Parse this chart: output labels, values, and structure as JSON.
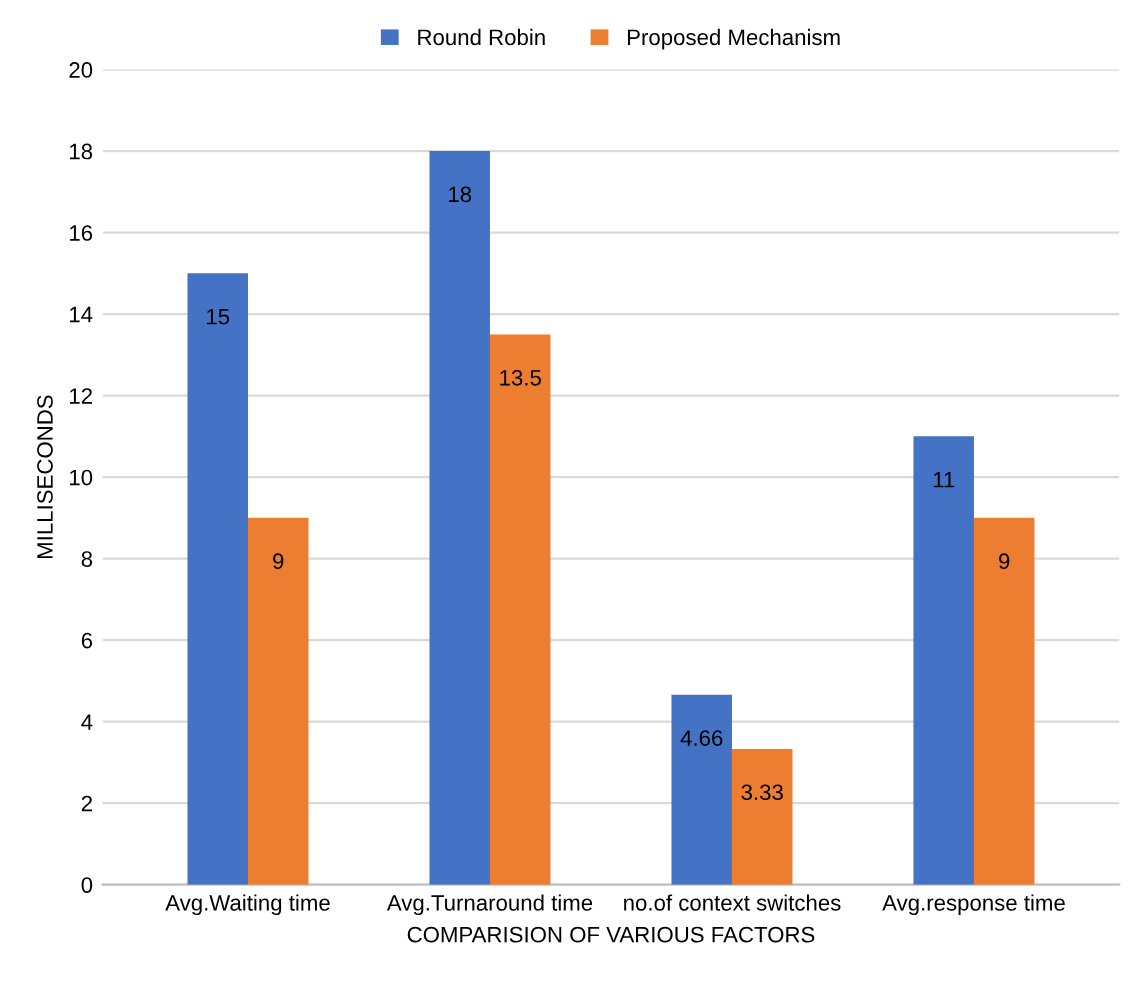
{
  "chart_data": {
    "type": "bar",
    "xlabel": "COMPARISION OF VARIOUS FACTORS",
    "ylabel": "MILLISECONDS",
    "categories": [
      "Avg.Waiting time",
      "Avg.Turnaround time",
      "no.of context switches",
      "Avg.response time"
    ],
    "series": [
      {
        "name": "Round Robin",
        "color": "#4472c4",
        "values": [
          15,
          18,
          4.66,
          11
        ]
      },
      {
        "name": "Proposed Mechanism",
        "color": "#ed7d31",
        "values": [
          9,
          13.5,
          3.33,
          9
        ]
      }
    ],
    "ylim": [
      0,
      20
    ],
    "yticks": [
      0,
      2,
      4,
      6,
      8,
      10,
      12,
      14,
      16,
      18,
      20
    ],
    "grid": "y",
    "legend": "top",
    "data_labels": true
  }
}
